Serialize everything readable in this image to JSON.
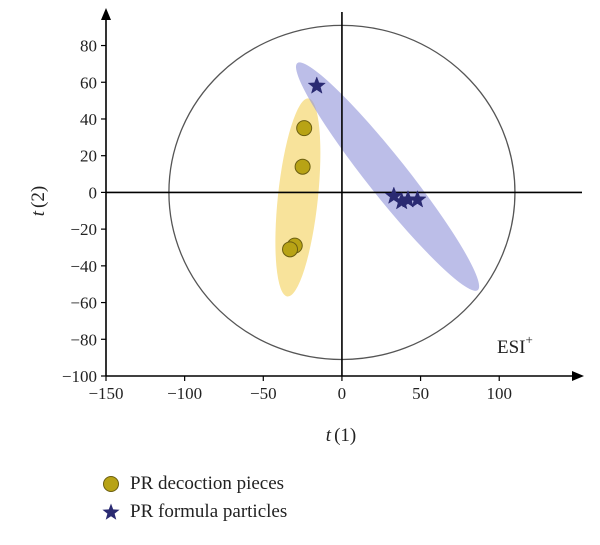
{
  "chart_data": {
    "type": "scatter",
    "xlabel_italic": "t",
    "xlabel_rest": "(1)",
    "ylabel_italic": "t",
    "ylabel_rest": "(2)",
    "xlim": [
      -150,
      145
    ],
    "ylim": [
      -100,
      95
    ],
    "xticks": [
      -150,
      -100,
      -50,
      0,
      50,
      100
    ],
    "yticks": [
      -100,
      -80,
      -60,
      -40,
      -20,
      0,
      20,
      40,
      60,
      80
    ],
    "grid": false,
    "annotation": {
      "base": "ESI",
      "sup": "+"
    },
    "confidence_ellipse": {
      "cx": 0,
      "cy": 0,
      "rx": 110,
      "ry": 91
    },
    "series": [
      {
        "name": "PR decoction pieces",
        "marker": "circle",
        "color": "#b8a315",
        "region_color": "#f6d97a",
        "points": [
          [
            -24,
            35
          ],
          [
            -25,
            14
          ],
          [
            -30,
            -29
          ],
          [
            -33,
            -31
          ]
        ]
      },
      {
        "name": "PR formula particles",
        "marker": "star",
        "color": "#2a2a72",
        "region_color": "#8f92d8",
        "points": [
          [
            -16,
            58
          ],
          [
            33,
            -2
          ],
          [
            38,
            -5
          ],
          [
            42,
            -4
          ],
          [
            48,
            -4
          ]
        ]
      }
    ]
  }
}
